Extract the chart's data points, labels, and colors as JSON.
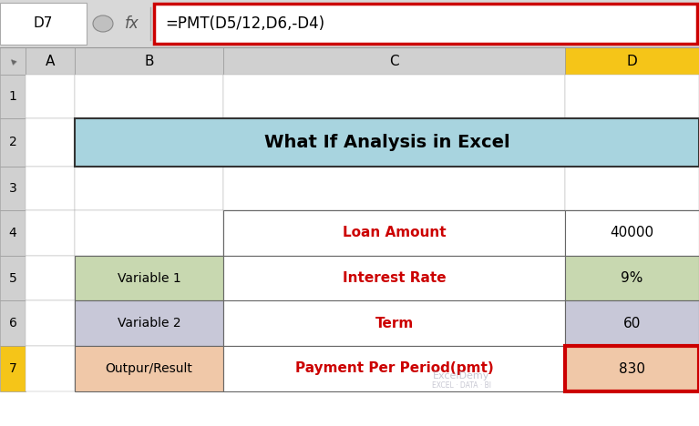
{
  "formula_bar_cell": "D7",
  "formula_bar_fx": "fx",
  "formula_bar_formula": "=PMT(D5/12,D6,-D4)",
  "title": "What If Analysis in Excel",
  "title_bg": "#a8d4df",
  "title_border": "#333333",
  "rows": [
    {
      "row": 4,
      "b_text": "",
      "c_text": "Loan Amount",
      "d_text": "40000",
      "b_bg": "#ffffff",
      "c_bg": "#ffffff",
      "d_bg": "#ffffff",
      "c_color": "#cc0000",
      "d_color": "#000000",
      "b_border": false
    },
    {
      "row": 5,
      "b_text": "Variable 1",
      "c_text": "Interest Rate",
      "d_text": "9%",
      "b_bg": "#c8d8b0",
      "c_bg": "#ffffff",
      "d_bg": "#c8d8b0",
      "c_color": "#cc0000",
      "d_color": "#000000",
      "b_border": true
    },
    {
      "row": 6,
      "b_text": "Variable 2",
      "c_text": "Term",
      "d_text": "60",
      "b_bg": "#c8c8d8",
      "c_bg": "#ffffff",
      "d_bg": "#c8c8d8",
      "c_color": "#cc0000",
      "d_color": "#000000",
      "b_border": true
    },
    {
      "row": 7,
      "b_text": "Outpur/Result",
      "c_text": "Payment Per Period(pmt)",
      "d_text": "830",
      "b_bg": "#f0c8a8",
      "c_bg": "#ffffff",
      "d_bg": "#f0c8a8",
      "c_color": "#cc0000",
      "d_color": "#000000",
      "b_border": true
    }
  ],
  "col_D_header_bg": "#f5c518",
  "row7_border_color": "#cc0000",
  "formula_box_border": "#cc0000",
  "watermark": "ExcelDemy",
  "watermark2": "EXCEL · DATA · BI",
  "bg_color": "#ffffff",
  "formula_bar_bg": "#d8d8d8",
  "gridline_color": "#aaaaaa",
  "header_bg": "#d0d0d0",
  "header_border": "#999999",
  "row7_num_bg": "#f5c518",
  "fx_color": "#555555",
  "formula_text_color": "#000000"
}
